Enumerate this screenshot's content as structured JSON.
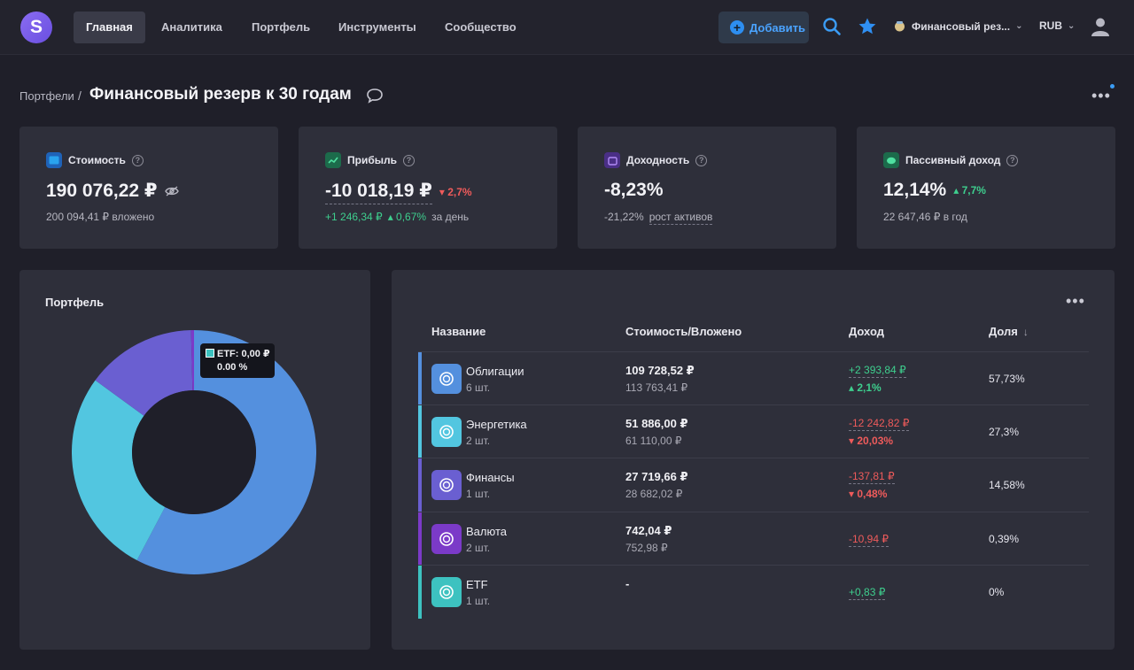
{
  "nav": {
    "logo_letter": "S",
    "items": [
      "Главная",
      "Аналитика",
      "Портфель",
      "Инструменты",
      "Сообщество"
    ],
    "add_label": "Добавить",
    "portfolio_selector": "Финансовый рез...",
    "currency": "RUB"
  },
  "breadcrumb": {
    "root": "Портфели",
    "separator": "/",
    "title": "Финансовый резерв к 30 годам"
  },
  "stats": {
    "value": {
      "label": "Стоимость",
      "amount": "190 076,22 ₽",
      "sub": "200 094,41 ₽ вложено"
    },
    "profit": {
      "label": "Прибыль",
      "amount": "-10 018,19 ₽",
      "badge": "2,7%",
      "day_abs": "+1 246,34 ₽",
      "day_pct": "0,67%",
      "day_suffix": "за день"
    },
    "yield": {
      "label": "Доходность",
      "amount": "-8,23%",
      "sub_value": "-21,22%",
      "sub_label": "рост активов"
    },
    "passive": {
      "label": "Пассивный доход",
      "amount": "12,14%",
      "badge": "7,7%",
      "sub": "22 647,46 ₽ в год"
    }
  },
  "portfolio_chart": {
    "title": "Портфель",
    "tooltip_label": "ETF: 0,00 ₽",
    "tooltip_pct": "0.00 %"
  },
  "chart_data": {
    "type": "pie",
    "title": "Портфель",
    "categories": [
      "Облигации",
      "Энергетика",
      "Финансы",
      "Валюта",
      "ETF"
    ],
    "values": [
      57.73,
      27.3,
      14.58,
      0.39,
      0
    ],
    "colors": [
      "#5490de",
      "#52c6e0",
      "#6a5fd1",
      "#7b3ac8",
      "#3dc2c0"
    ]
  },
  "table": {
    "headers": {
      "name": "Название",
      "value": "Стоимость/Вложено",
      "income": "Доход",
      "share": "Доля"
    },
    "rows": [
      {
        "name": "Облигации",
        "qty": "6 шт.",
        "value": "109 728,52 ₽",
        "invested": "113 763,41 ₽",
        "income": "+2 393,84 ₽",
        "income_pct": "2,1%",
        "trend": "up",
        "share": "57,73%",
        "color": "#5490de"
      },
      {
        "name": "Энергетика",
        "qty": "2 шт.",
        "value": "51 886,00 ₽",
        "invested": "61 110,00 ₽",
        "income": "-12 242,82 ₽",
        "income_pct": "20,03%",
        "trend": "down",
        "share": "27,3%",
        "color": "#52c6e0"
      },
      {
        "name": "Финансы",
        "qty": "1 шт.",
        "value": "27 719,66 ₽",
        "invested": "28 682,02 ₽",
        "income": "-137,81 ₽",
        "income_pct": "0,48%",
        "trend": "down",
        "share": "14,58%",
        "color": "#6a5fd1"
      },
      {
        "name": "Валюта",
        "qty": "2 шт.",
        "value": "742,04 ₽",
        "invested": "752,98 ₽",
        "income": "-10,94 ₽",
        "income_pct": "",
        "trend": "down",
        "share": "0,39%",
        "color": "#7b3ac8"
      },
      {
        "name": "ETF",
        "qty": "1 шт.",
        "value": "-",
        "invested": "",
        "income": "+0,83 ₽",
        "income_pct": "",
        "trend": "up",
        "share": "0%",
        "color": "#3dc2c0"
      }
    ]
  }
}
